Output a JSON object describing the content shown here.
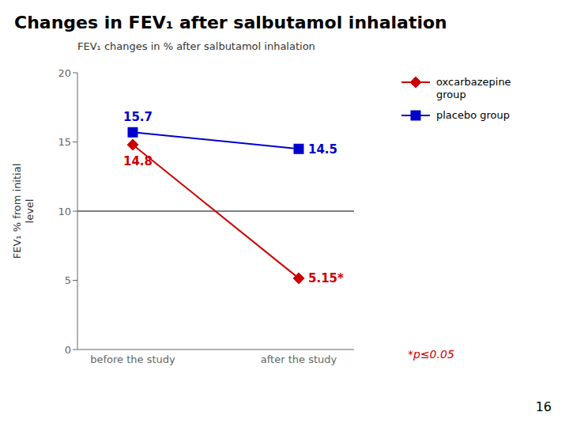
{
  "chart_data": {
    "type": "line",
    "title": "Changes in FEV₁ after salbutamol inhalation",
    "subtitle": "FEV₁ changes in % after salbutamol inhalation",
    "y_label": "FEV₁ % from initial\nlevel",
    "categories": [
      "before the study",
      "after the study"
    ],
    "series": [
      {
        "name": "oxcarbazepine\ngroup",
        "color": "#cc0000",
        "marker": "diamond",
        "values": [
          14.8,
          5.15
        ],
        "value_labels": [
          "14.8",
          "5.15*"
        ]
      },
      {
        "name": "placebo group",
        "color": "#0000cc",
        "marker": "square",
        "values": [
          15.7,
          14.5
        ],
        "value_labels": [
          "15.7",
          "14.5"
        ]
      }
    ],
    "reference_line": 10,
    "ylim": [
      0,
      20
    ],
    "yticks": [
      0,
      5,
      10,
      15,
      20
    ],
    "grid": false,
    "data_labels": true,
    "annotations": [
      "*p≤0.05",
      "16"
    ]
  }
}
